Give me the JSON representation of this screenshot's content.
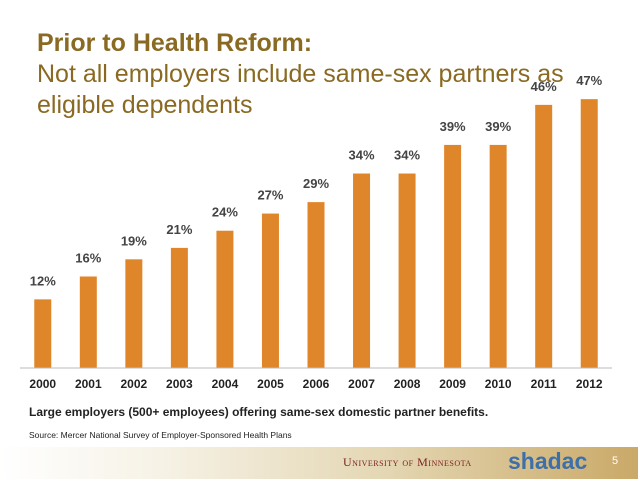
{
  "slide": {
    "title_line1": "Prior to Health Reform:",
    "title_line2": "Not all employers include same-sex partners as",
    "title_line3": "eligible dependents",
    "caption": "Large employers (500+ employees) offering same-sex domestic partner benefits.",
    "source": "Source: Mercer National Survey of Employer-Sponsored Health Plans",
    "footer_university": "University of Minnesota",
    "footer_brand": "shadac",
    "page_number": "5"
  },
  "chart_data": {
    "type": "bar",
    "categories": [
      "2000",
      "2001",
      "2002",
      "2003",
      "2004",
      "2005",
      "2006",
      "2007",
      "2008",
      "2009",
      "2010",
      "2011",
      "2012"
    ],
    "values": [
      12,
      16,
      19,
      21,
      24,
      27,
      29,
      34,
      34,
      39,
      39,
      46,
      47
    ],
    "data_labels": [
      "12%",
      "16%",
      "19%",
      "21%",
      "24%",
      "27%",
      "29%",
      "34%",
      "34%",
      "39%",
      "39%",
      "46%",
      "47%"
    ],
    "ylim": [
      0,
      50
    ],
    "grid": false,
    "color": "#e0862a"
  }
}
